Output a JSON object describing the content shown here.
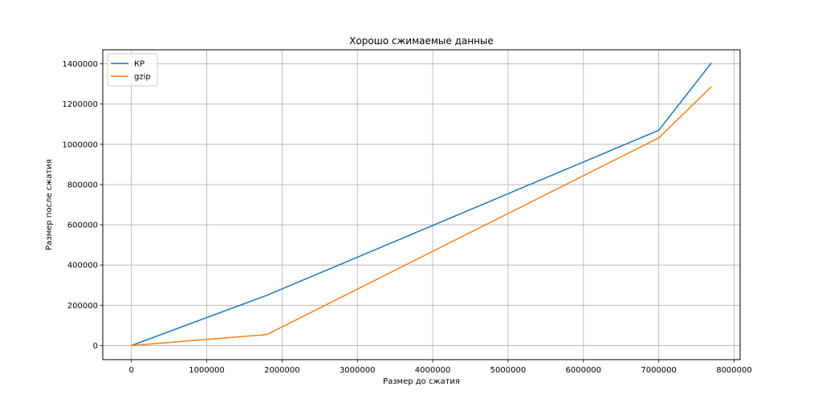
{
  "chart_data": {
    "type": "line",
    "title": "Хорошо сжимаемые данные",
    "xlabel": "Размер до сжатия",
    "ylabel": "Размер после сжатия",
    "xlim": [
      -380000,
      8080000
    ],
    "ylim": [
      -70000,
      1470000
    ],
    "xticks": [
      0,
      1000000,
      2000000,
      3000000,
      4000000,
      5000000,
      6000000,
      7000000,
      8000000
    ],
    "yticks": [
      0,
      200000,
      400000,
      600000,
      800000,
      1000000,
      1200000,
      1400000
    ],
    "grid": true,
    "legend": "upper-left",
    "series": [
      {
        "name": "КР",
        "color": "#1f77b4",
        "x": [
          0,
          1800000,
          7000000,
          7700000
        ],
        "y": [
          0,
          250000,
          1070000,
          1405000
        ]
      },
      {
        "name": "gzip",
        "color": "#ff7f0e",
        "x": [
          0,
          1800000,
          7000000,
          7700000
        ],
        "y": [
          0,
          55000,
          1032000,
          1287000
        ]
      }
    ]
  }
}
